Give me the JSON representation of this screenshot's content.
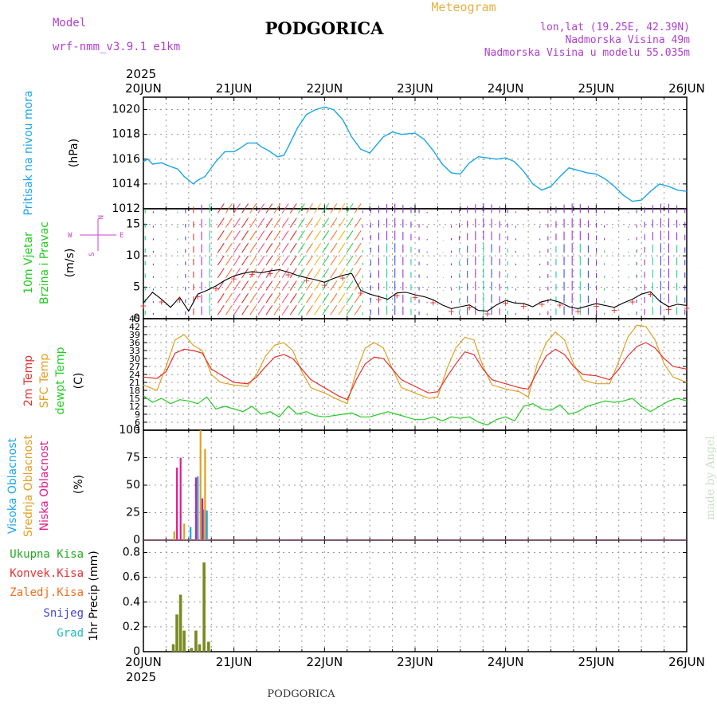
{
  "header": {
    "model_label": "Model",
    "model_name": "wrf-nmm_v3.9.1 e1km",
    "title": "PODGORICA",
    "subtitle": "Meteogram",
    "lonlat": "lon,lat (19.25E, 42.39N)",
    "elevation": "Nadmorska Visina 49m",
    "model_elevation": "Nadmorska Visina u modelu 55.035m",
    "year_top": "2025",
    "year_bottom": "2025",
    "footer": "PODGORICA",
    "watermark": "made by Angel"
  },
  "colors": {
    "pressure": "#1aa6e6",
    "t2m": "#e53030",
    "sfc": "#e0a020",
    "dewpt": "#22cc22",
    "cloud_high": "#1aa6e6",
    "cloud_mid": "#e0a020",
    "cloud_low": "#e01a8a",
    "precip_total": "#22aa22",
    "precip_conv": "#e53030",
    "precip_frz": "#f07020",
    "precip_snow": "#4444dd",
    "precip_grad": "#22bbbb",
    "grid": "#999999",
    "wind_compass": "#cc44cc"
  },
  "chart_data": [
    {
      "type": "line",
      "id": "pressure",
      "ylabel_parts": [
        "Pritisak na nivou mora",
        "(hPa)"
      ],
      "x_labels": [
        "20JUN",
        "21JUN",
        "22JUN",
        "23JUN",
        "24JUN",
        "25JUN",
        "26JUN"
      ],
      "ylim": [
        1012,
        1021
      ],
      "yticks": [
        1012,
        1014,
        1016,
        1018,
        1020
      ],
      "grid": true,
      "series": [
        {
          "x": [
            0,
            0.05,
            0.1,
            0.2,
            0.3,
            0.38,
            0.45,
            0.55,
            0.6,
            0.68,
            0.8,
            0.9,
            1.0,
            1.05,
            1.15,
            1.25,
            1.3,
            1.38,
            1.48,
            1.55,
            1.6,
            1.7,
            1.8,
            1.9,
            2.0,
            2.1,
            2.2,
            2.25,
            2.3,
            2.4,
            2.5,
            2.65,
            2.75,
            2.85,
            3.0,
            3.1,
            3.2,
            3.3,
            3.4,
            3.5,
            3.6,
            3.7,
            3.8,
            3.9,
            4.0,
            4.1,
            4.2,
            4.3,
            4.4,
            4.5,
            4.6,
            4.7,
            4.8,
            4.9,
            5.0,
            5.1,
            5.2,
            5.3,
            5.4,
            5.5,
            5.6,
            5.7,
            5.8,
            5.9,
            6.0
          ],
          "values": [
            1015.8,
            1016.0,
            1015.6,
            1015.7,
            1015.4,
            1015.2,
            1014.6,
            1014.0,
            1014.3,
            1014.6,
            1015.8,
            1016.6,
            1016.6,
            1016.8,
            1017.3,
            1017.3,
            1017.0,
            1016.7,
            1016.2,
            1016.3,
            1017.0,
            1018.5,
            1019.6,
            1020.0,
            1020.2,
            1020.0,
            1019.2,
            1018.5,
            1017.8,
            1016.8,
            1016.5,
            1017.8,
            1018.2,
            1018.0,
            1018.1,
            1017.6,
            1016.7,
            1015.6,
            1014.9,
            1014.8,
            1015.7,
            1016.2,
            1016.1,
            1016.0,
            1016.1,
            1015.8,
            1015.0,
            1014.0,
            1013.5,
            1013.8,
            1014.6,
            1015.3,
            1015.1,
            1014.9,
            1014.8,
            1014.4,
            1013.8,
            1013.1,
            1012.6,
            1012.7,
            1013.4,
            1014.0,
            1013.8,
            1013.5,
            1013.4
          ]
        }
      ]
    },
    {
      "type": "line",
      "id": "wind",
      "ylabel_parts": [
        "10m Vjetar",
        "Brzina i Pravac",
        "(m/s)"
      ],
      "compass": [
        "N",
        "W",
        "E",
        "S"
      ],
      "ylim": [
        0,
        17.5
      ],
      "yticks": [
        0,
        5,
        10,
        15
      ],
      "grid": true,
      "series": [
        {
          "name": "speed",
          "x": [
            0,
            0.1,
            0.2,
            0.3,
            0.4,
            0.5,
            0.6,
            0.7,
            0.8,
            0.9,
            1.0,
            1.1,
            1.2,
            1.3,
            1.4,
            1.5,
            1.6,
            1.7,
            1.8,
            1.9,
            2.0,
            2.1,
            2.2,
            2.3,
            2.4,
            2.5,
            2.6,
            2.7,
            2.8,
            2.9,
            3.0,
            3.1,
            3.2,
            3.3,
            3.4,
            3.5,
            3.6,
            3.7,
            3.8,
            3.9,
            4.0,
            4.1,
            4.2,
            4.3,
            4.4,
            4.5,
            4.6,
            4.7,
            4.8,
            4.9,
            5.0,
            5.1,
            5.2,
            5.3,
            5.4,
            5.5,
            5.6,
            5.7,
            5.8,
            5.9,
            6.0
          ],
          "values": [
            2.5,
            4.2,
            3.1,
            1.8,
            3.4,
            1.2,
            3.9,
            4.5,
            5.2,
            6.1,
            6.8,
            7.2,
            7.5,
            7.3,
            7.6,
            7.8,
            7.4,
            6.9,
            6.5,
            6.2,
            5.8,
            6.4,
            6.9,
            7.2,
            4.5,
            3.9,
            3.5,
            3.1,
            4.1,
            4.2,
            3.8,
            3.5,
            3.0,
            2.2,
            1.6,
            1.9,
            2.2,
            1.3,
            1.2,
            2.2,
            2.9,
            2.5,
            2.4,
            1.9,
            2.7,
            3.0,
            2.6,
            1.9,
            1.6,
            2.0,
            2.4,
            2.1,
            1.8,
            2.5,
            3.1,
            3.9,
            4.3,
            2.8,
            1.9,
            2.3,
            2.1
          ]
        }
      ]
    },
    {
      "type": "line",
      "id": "temperature",
      "ylabel_parts": [
        "2m Temp",
        "SFC Temp",
        "dewpt Temp",
        "(C)"
      ],
      "ylim": [
        3,
        45
      ],
      "yticks": [
        3,
        6,
        9,
        12,
        15,
        18,
        21,
        24,
        27,
        30,
        33,
        36,
        39,
        42,
        45
      ],
      "grid": true,
      "series": [
        {
          "name": "2m Temp",
          "x": [
            0,
            0.15,
            0.25,
            0.35,
            0.45,
            0.55,
            0.65,
            0.75,
            0.85,
            1.0,
            1.15,
            1.25,
            1.35,
            1.45,
            1.55,
            1.65,
            1.75,
            1.85,
            2.0,
            2.15,
            2.25,
            2.35,
            2.45,
            2.55,
            2.65,
            2.75,
            2.85,
            3.0,
            3.15,
            3.25,
            3.35,
            3.45,
            3.55,
            3.65,
            3.75,
            3.85,
            4.0,
            4.15,
            4.25,
            4.35,
            4.45,
            4.55,
            4.65,
            4.75,
            4.85,
            5.0,
            5.15,
            5.25,
            5.35,
            5.45,
            5.55,
            5.65,
            5.75,
            5.85,
            6.0
          ],
          "values": [
            23,
            22.5,
            25,
            32,
            33.5,
            33,
            32,
            26,
            24,
            21,
            20.5,
            23,
            27,
            30.5,
            31.5,
            30,
            26,
            22,
            19,
            16,
            14.5,
            22,
            28,
            30.5,
            30,
            26,
            22,
            19.5,
            17,
            17.5,
            23,
            28,
            32.5,
            31.5,
            26,
            22,
            20.5,
            19,
            18.5,
            25,
            31,
            33.5,
            31.5,
            27,
            24,
            23.5,
            22,
            26,
            31,
            34.5,
            36,
            34,
            30,
            27,
            26
          ]
        },
        {
          "name": "SFC Temp",
          "x": [
            0,
            0.15,
            0.25,
            0.35,
            0.45,
            0.55,
            0.65,
            0.75,
            0.85,
            1.0,
            1.15,
            1.25,
            1.35,
            1.45,
            1.55,
            1.65,
            1.75,
            1.85,
            2.0,
            2.15,
            2.25,
            2.35,
            2.45,
            2.55,
            2.65,
            2.75,
            2.85,
            3.0,
            3.15,
            3.25,
            3.35,
            3.45,
            3.55,
            3.65,
            3.75,
            3.85,
            4.0,
            4.15,
            4.25,
            4.35,
            4.45,
            4.55,
            4.65,
            4.75,
            4.85,
            5.0,
            5.15,
            5.25,
            5.35,
            5.45,
            5.55,
            5.65,
            5.75,
            5.85,
            6.0
          ],
          "values": [
            20,
            18,
            27,
            37,
            39,
            35,
            33,
            24,
            21,
            20,
            19.5,
            24,
            31,
            35,
            36,
            33,
            25,
            19,
            17,
            14.5,
            13,
            25,
            34,
            36,
            34,
            26,
            19,
            17,
            15,
            15.5,
            26,
            34,
            38,
            37,
            27,
            20,
            18.5,
            17.5,
            15.5,
            28,
            36,
            40,
            37,
            28,
            22,
            20.5,
            20.5,
            29,
            38,
            42.5,
            42,
            37,
            28,
            23,
            21
          ]
        },
        {
          "name": "dewpt Temp",
          "x": [
            0,
            0.1,
            0.2,
            0.3,
            0.4,
            0.5,
            0.6,
            0.7,
            0.8,
            0.9,
            1.0,
            1.1,
            1.2,
            1.3,
            1.4,
            1.5,
            1.6,
            1.7,
            1.8,
            1.9,
            2.0,
            2.1,
            2.2,
            2.3,
            2.4,
            2.5,
            2.6,
            2.7,
            2.8,
            2.9,
            3.0,
            3.1,
            3.2,
            3.3,
            3.4,
            3.5,
            3.6,
            3.7,
            3.8,
            3.9,
            4.0,
            4.1,
            4.2,
            4.3,
            4.4,
            4.5,
            4.6,
            4.7,
            4.8,
            4.9,
            5.0,
            5.1,
            5.2,
            5.3,
            5.4,
            5.5,
            5.6,
            5.7,
            5.8,
            5.9,
            6.0
          ],
          "values": [
            16,
            13.5,
            15,
            13,
            14.5,
            14,
            13,
            15.5,
            11,
            12,
            11,
            10,
            12,
            9,
            10,
            8,
            12,
            9,
            10,
            8.5,
            8,
            8.5,
            9,
            9.5,
            8,
            8,
            9,
            10,
            9,
            8,
            7,
            7,
            8,
            6.5,
            8,
            7.5,
            8,
            6,
            5,
            7,
            8,
            6.5,
            12,
            13,
            11,
            10.5,
            12.5,
            9,
            10,
            12,
            13,
            14,
            13.5,
            14,
            15,
            12,
            10,
            12,
            14,
            15,
            14
          ]
        }
      ]
    },
    {
      "type": "bar",
      "id": "clouds",
      "ylabel_parts": [
        "Visoka Oblacnost",
        "Srednja Oblacnost",
        "Niska Oblacnost",
        "(%)"
      ],
      "ylim": [
        0,
        100
      ],
      "yticks": [
        0,
        25,
        50,
        75,
        100
      ],
      "grid": true,
      "series": [
        {
          "name": "Visoka Oblacnost",
          "x": [
            0.52,
            0.6,
            0.66,
            0.7
          ],
          "values": [
            12,
            58,
            28,
            27
          ]
        },
        {
          "name": "Srednja Oblacnost",
          "x": [
            0.34,
            0.45,
            0.63,
            0.68
          ],
          "values": [
            8,
            15,
            100,
            83
          ]
        },
        {
          "name": "Niska Oblacnost",
          "x": [
            0.37,
            0.41,
            0.58,
            0.65
          ],
          "values": [
            66,
            75,
            57,
            38
          ]
        }
      ]
    },
    {
      "type": "bar",
      "id": "precip",
      "ylabel_parts": [
        "1hr Precip (mm)"
      ],
      "legend": [
        "Ukupna Kisa",
        "Konvek.Kisa",
        "Zaledj.Kisa",
        "Snijeg",
        "Grad"
      ],
      "x_labels": [
        "20JUN",
        "21JUN",
        "22JUN",
        "23JUN",
        "24JUN",
        "25JUN",
        "26JUN"
      ],
      "ylim": [
        0,
        0.9
      ],
      "yticks": [
        0,
        0.2,
        0.4,
        0.6,
        0.8
      ],
      "grid": true,
      "series": [
        {
          "name": "Ukupna Kisa",
          "x": [
            0.33,
            0.37,
            0.41,
            0.45,
            0.53,
            0.58,
            0.62,
            0.67,
            0.72
          ],
          "values": [
            0.06,
            0.3,
            0.46,
            0.17,
            0.03,
            0.17,
            0.06,
            0.72,
            0.08
          ]
        }
      ]
    }
  ]
}
